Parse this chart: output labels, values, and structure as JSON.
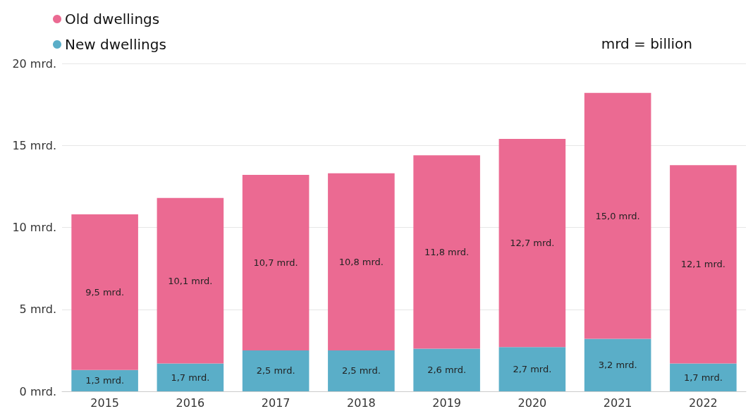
{
  "chart_data": {
    "type": "bar",
    "stacked": true,
    "categories": [
      "2015",
      "2016",
      "2017",
      "2018",
      "2019",
      "2020",
      "2021",
      "2022"
    ],
    "series": [
      {
        "name": "New dwellings",
        "color": "#5aaec8",
        "values": [
          1.3,
          1.7,
          2.5,
          2.5,
          2.6,
          2.7,
          3.2,
          1.7
        ],
        "value_labels": [
          "1,3 mrd.",
          "1,7 mrd.",
          "2,5 mrd.",
          "2,5 mrd.",
          "2,6 mrd.",
          "2,7 mrd.",
          "3,2 mrd.",
          "1,7 mrd."
        ]
      },
      {
        "name": "Old dwellings",
        "color": "#eb6a92",
        "values": [
          9.5,
          10.1,
          10.7,
          10.8,
          11.8,
          12.7,
          15.0,
          12.1
        ],
        "value_labels": [
          "9,5 mrd.",
          "10,1 mrd.",
          "10,7 mrd.",
          "10,8 mrd.",
          "11,8 mrd.",
          "12,7 mrd.",
          "15,0 mrd.",
          "12,1 mrd."
        ]
      }
    ],
    "ylim": [
      0,
      20
    ],
    "yticks": [
      {
        "value": 0,
        "label": "0 mrd."
      },
      {
        "value": 5,
        "label": "5 mrd."
      },
      {
        "value": 10,
        "label": "10 mrd."
      },
      {
        "value": 15,
        "label": "15 mrd."
      },
      {
        "value": 20,
        "label": "20 mrd."
      }
    ],
    "grid": "y",
    "legend": "top left",
    "annotations": [
      "mrd = billion"
    ]
  }
}
